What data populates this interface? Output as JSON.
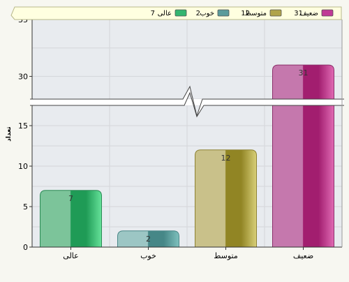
{
  "chart_data": {
    "type": "bar",
    "categories": [
      "عالی",
      "خوب",
      "متوسط",
      "ضعیف"
    ],
    "values": [
      7,
      2,
      12,
      31
    ],
    "data_labels": [
      "7",
      "2",
      "12",
      "31"
    ],
    "ylabel": "تعداد",
    "y_ticks": [
      "0",
      "5",
      "10",
      "15",
      "30",
      "35"
    ],
    "ylim": [
      0,
      35
    ],
    "axis_break": [
      17.5,
      28
    ],
    "grid": true,
    "legend_position": "top",
    "legend": [
      {
        "label": "ضعیف",
        "value": "31",
        "color": "#c03b96"
      },
      {
        "label": "متوسط",
        "value": "12",
        "color": "#b0a44a"
      },
      {
        "label": "خوب",
        "value": "2",
        "color": "#5b9b9b"
      },
      {
        "label": "عالی",
        "value": "7",
        "color": "#33b56f"
      }
    ],
    "colors": {
      "عالی": [
        "#7cc49a",
        "#1f9b56",
        "#66e29a",
        "#2a8a55"
      ],
      "خوب": [
        "#9cc6c4",
        "#468787",
        "#7ec0bd",
        "#4a8888"
      ],
      "متوسط": [
        "#c9c18a",
        "#918524",
        "#d8cf78",
        "#8d8233"
      ],
      "ضعیف": [
        "#c578ad",
        "#a21e6f",
        "#e06ab4",
        "#8b2f6a"
      ]
    },
    "plot_background": "#e8ebef",
    "legend_background": "#ffffe0"
  }
}
